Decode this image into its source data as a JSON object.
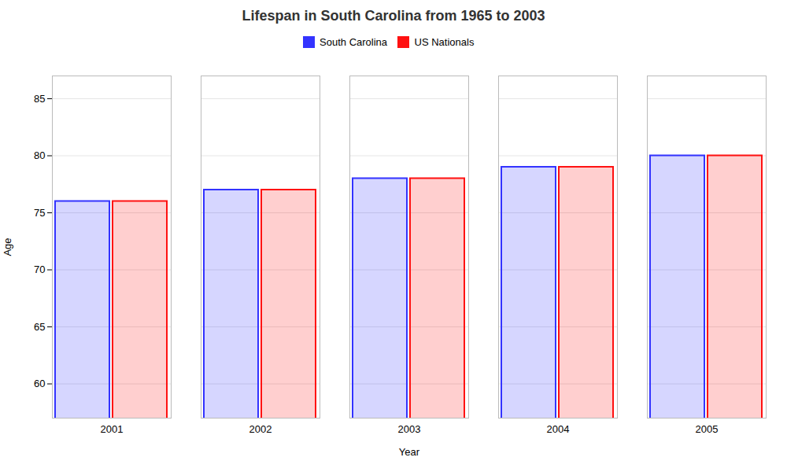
{
  "chart_data": {
    "type": "bar",
    "title": "Lifespan in South Carolina from 1965 to 2003",
    "xlabel": "Year",
    "ylabel": "Age",
    "categories": [
      "2001",
      "2002",
      "2003",
      "2004",
      "2005"
    ],
    "series": [
      {
        "name": "South Carolina",
        "color": "#3333ff",
        "values": [
          76,
          77,
          78,
          79,
          80
        ]
      },
      {
        "name": "US Nationals",
        "color": "#ff1111",
        "values": [
          76,
          77,
          78,
          79,
          80
        ]
      }
    ],
    "ylim": [
      57,
      87
    ],
    "yticks": [
      60,
      65,
      70,
      75,
      80,
      85
    ],
    "grid": true,
    "legend": "top"
  }
}
